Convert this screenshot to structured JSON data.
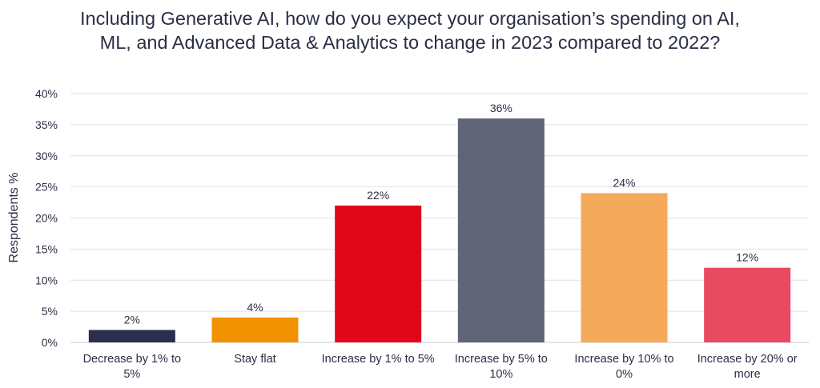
{
  "chart_data": {
    "type": "bar",
    "title": "Including Generative AI, how do you expect your organisation’s spending on AI, ML, and Advanced Data & Analytics to change in 2023 compared to 2022?",
    "xlabel": "",
    "ylabel": "Respondents %",
    "ylim": [
      0,
      40
    ],
    "yticks": [
      0,
      5,
      10,
      15,
      20,
      25,
      30,
      35,
      40
    ],
    "ytick_suffix": "%",
    "grid": true,
    "legend": "none",
    "categories": [
      [
        "Decrease by 1% to",
        "5%"
      ],
      [
        "Stay flat"
      ],
      [
        "Increase by 1% to 5%"
      ],
      [
        "Increase by 5% to",
        "10%"
      ],
      [
        "Increase by 10% to",
        "0%"
      ],
      [
        "Increase by 20% or",
        "more"
      ]
    ],
    "values": [
      2,
      4,
      22,
      36,
      24,
      12
    ],
    "data_labels": [
      "2%",
      "4%",
      "22%",
      "36%",
      "24%",
      "12%"
    ],
    "colors": [
      "#2b2f4f",
      "#f39200",
      "#e2061b",
      "#5f6577",
      "#f4aa5a",
      "#e84a5f"
    ]
  }
}
